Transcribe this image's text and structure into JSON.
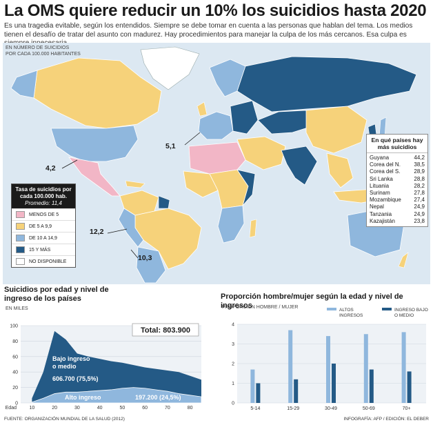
{
  "header": {
    "title": "La OMS quiere reducir un 10% los suicidios hasta 2020",
    "intro": "Es una tragedia evitable, según los entendidos. Siempre se debe tomar en cuenta a las personas que hablan del tema. Los medios tienen el desafío de tratar del asunto con madurez. Hay procedimientos para manejar la culpa de los más cercanos. Esa culpa es siempre innecesaria."
  },
  "map": {
    "note_line1": "EN NÚMERO DE SUICIDIOS",
    "note_line2": "POR CADA 100.000 HABITANTES",
    "colors": {
      "ocean": "#dce8f2",
      "low": "#f2b6c6",
      "mid": "#f6d27a",
      "high": "#8fb7dd",
      "top": "#245a86",
      "na": "#ffffff"
    },
    "callouts": [
      {
        "value": "5,1"
      },
      {
        "value": "4,2"
      },
      {
        "value": "12,2"
      },
      {
        "value": "10,3"
      }
    ],
    "legend": {
      "title": "Tasa de suicidios por cada 100.000 hab.",
      "average": "Promedio: 11,4",
      "items": [
        {
          "label": "MENOS DE 5",
          "color": "#f2b6c6"
        },
        {
          "label": "DE 5 A 9,9",
          "color": "#f6d27a"
        },
        {
          "label": "DE 10 A 14,9",
          "color": "#8fb7dd"
        },
        {
          "label": "15 Y MÁS",
          "color": "#245a86"
        },
        {
          "label": "NO DISPONIBLE",
          "color": "#ffffff"
        }
      ]
    },
    "top_countries": {
      "title": "En qué países hay más suicidios",
      "rows": [
        {
          "country": "Guyana",
          "rate": "44,2"
        },
        {
          "country": "Corea del N.",
          "rate": "38,5"
        },
        {
          "country": "Corea del S.",
          "rate": "28,9"
        },
        {
          "country": "Sri Lanka",
          "rate": "28,8"
        },
        {
          "country": "Lituania",
          "rate": "28,2"
        },
        {
          "country": "Surinam",
          "rate": "27,8"
        },
        {
          "country": "Mozambique",
          "rate": "27,4"
        },
        {
          "country": "Nepal",
          "rate": "24,9"
        },
        {
          "country": "Tanzania",
          "rate": "24,9"
        },
        {
          "country": "Kazajistán",
          "rate": "23,8"
        }
      ]
    }
  },
  "chart_data": [
    {
      "type": "area",
      "title": "Suicidios por edad y nivel de ingreso de los países",
      "ylabel": "EN MILES",
      "xlabel": "Edad",
      "x": [
        10,
        15,
        20,
        25,
        30,
        35,
        40,
        45,
        50,
        55,
        60,
        65,
        70,
        75,
        80,
        85
      ],
      "ylim": [
        0,
        100
      ],
      "xlim": [
        5,
        85
      ],
      "yticks": [
        0,
        20,
        40,
        60,
        80,
        100
      ],
      "xticks": [
        10,
        20,
        30,
        40,
        50,
        60,
        70,
        80
      ],
      "series": [
        {
          "name": "Bajo ingreso o medio",
          "label_value": "606.700 (75,5%)",
          "color": "#245a86",
          "values": [
            6,
            40,
            93,
            82,
            64,
            60,
            57,
            54,
            52,
            49,
            46,
            44,
            42,
            40,
            35,
            30
          ]
        },
        {
          "name": "Alto ingreso",
          "label_value": "197.200 (24,5%)",
          "color": "#8fb7dd",
          "values": [
            1,
            6,
            12,
            14,
            14,
            15,
            16,
            17,
            19,
            20,
            19,
            17,
            15,
            12,
            10,
            8
          ]
        }
      ],
      "total": "Total: 803.900"
    },
    {
      "type": "bar",
      "title": "Proporción hombre/mujer según la edad y nivel de ingresos",
      "ylabel": "PROPORCIÓN HOMBRE / MUJER",
      "categories": [
        "5-14",
        "15-29",
        "30-49",
        "50-69",
        "70+"
      ],
      "ylim": [
        0,
        4
      ],
      "yticks": [
        0,
        1,
        2,
        3,
        4
      ],
      "series": [
        {
          "name": "ALTOS INGRESOS",
          "color": "#8fb7dd",
          "values": [
            1.7,
            3.7,
            3.4,
            3.5,
            3.6
          ]
        },
        {
          "name": "INGRESO BAJO O MEDIO",
          "color": "#245a86",
          "values": [
            1.0,
            1.2,
            2.0,
            1.7,
            1.6
          ]
        }
      ]
    }
  ],
  "footer": {
    "source": "FUENTE: ORGANIZACIÓN MUNDIAL DE LA SALUD (2012)",
    "credit": "INFOGRAFÍA: AFP  /  EDICIÓN: EL DEBER"
  }
}
